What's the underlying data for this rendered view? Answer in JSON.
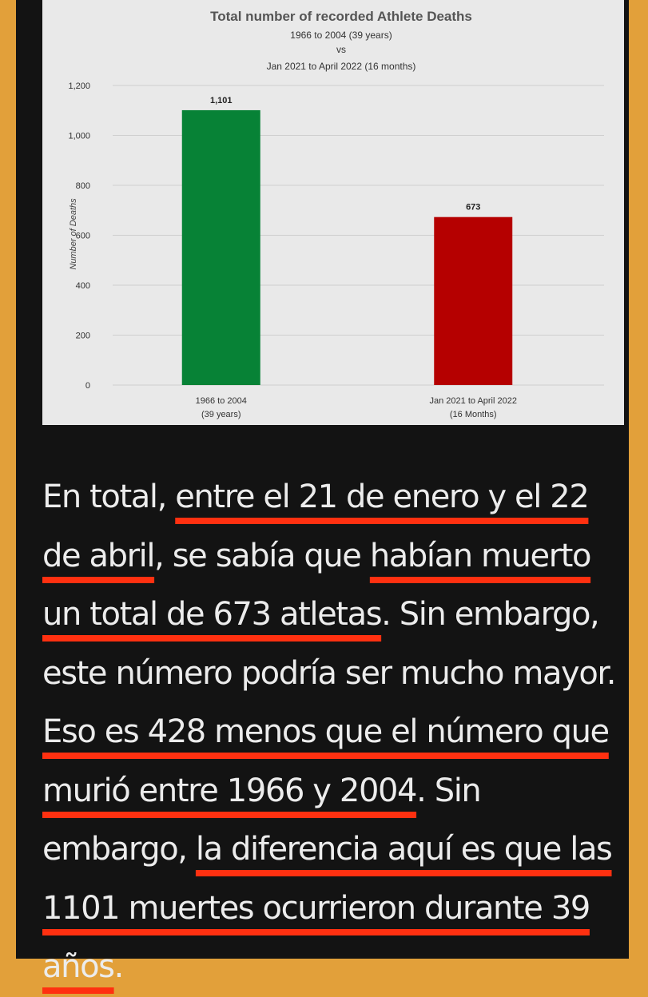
{
  "chart_data": {
    "type": "bar",
    "title": "Total number of recorded Athlete Deaths",
    "subtitle_lines": [
      "1966 to 2004 (39 years)",
      "vs",
      "Jan 2021 to April 2022 (16 months)"
    ],
    "ylabel": "Number of Deaths",
    "xlabel": "",
    "ylim": [
      0,
      1200
    ],
    "yticks": [
      0,
      200,
      400,
      600,
      800,
      1000,
      1200
    ],
    "ytick_labels": [
      "0",
      "200",
      "400",
      "600",
      "800",
      "1,000",
      "1,200"
    ],
    "categories": [
      [
        "1966 to 2004",
        "(39 years)"
      ],
      [
        "Jan 2021 to April 2022",
        "(16 Months)"
      ]
    ],
    "values": [
      1101,
      673
    ],
    "value_labels": [
      "1,101",
      "673"
    ],
    "bar_colors": [
      "#078236",
      "#b50000"
    ],
    "grid": true,
    "legend": "none"
  },
  "colors": {
    "page_border": "#e2a03a",
    "background": "#131313",
    "text": "#ececec",
    "highlight_underline": "#ff3010",
    "chart_background": "#e9e9e9"
  },
  "article": {
    "segments": [
      {
        "text": "En total, ",
        "hl": false
      },
      {
        "text": "entre el 21 de enero y el 22 de abril",
        "hl": true
      },
      {
        "text": ", se sabía que ",
        "hl": false
      },
      {
        "text": "habían muerto un total de 673 atletas",
        "hl": true
      },
      {
        "text": ". Sin embargo, este número podría ser mucho mayor. ",
        "hl": false
      },
      {
        "text": "Eso es 428 menos que el número que murió entre 1966 y 2004",
        "hl": true
      },
      {
        "text": ". Sin embargo, ",
        "hl": false
      },
      {
        "text": "la diferencia aquí es que las 1101 muertes ocurrieron durante 39 años",
        "hl": true
      },
      {
        "text": ".",
        "hl": false
      }
    ]
  }
}
